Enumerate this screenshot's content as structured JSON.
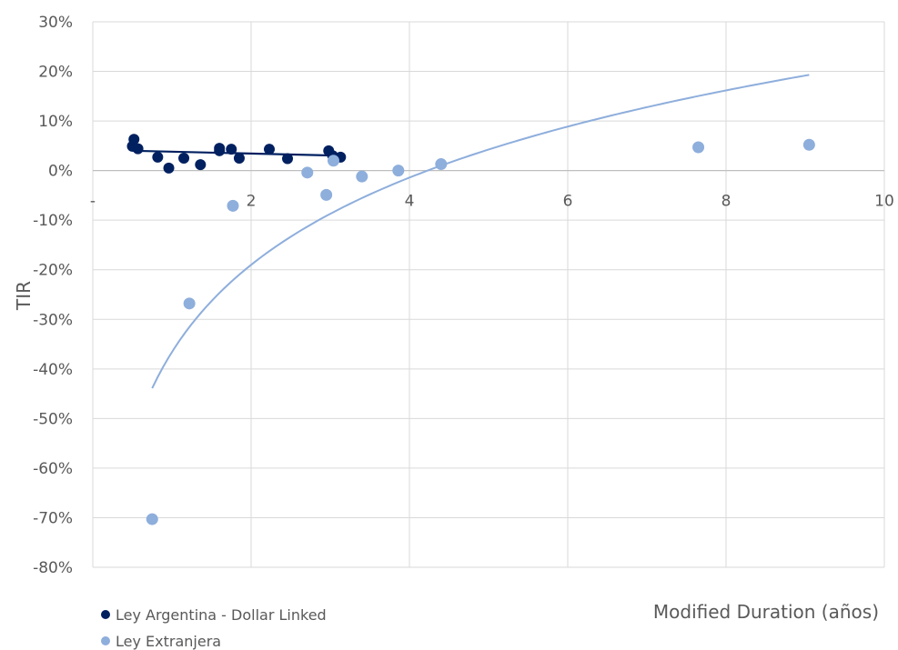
{
  "chart_data": {
    "type": "scatter",
    "xlabel": "Modified Duration (años)",
    "ylabel": "TIR",
    "xlim": [
      0,
      10
    ],
    "ylim": [
      -80,
      30
    ],
    "x_ticks": [
      {
        "value": 0,
        "label": "-"
      },
      {
        "value": 2,
        "label": "2"
      },
      {
        "value": 4,
        "label": "4"
      },
      {
        "value": 6,
        "label": "6"
      },
      {
        "value": 8,
        "label": "8"
      },
      {
        "value": 10,
        "label": "10"
      }
    ],
    "y_ticks": [
      {
        "value": 30,
        "label": "30%"
      },
      {
        "value": 20,
        "label": "20%"
      },
      {
        "value": 10,
        "label": "10%"
      },
      {
        "value": 0,
        "label": "0%"
      },
      {
        "value": -10,
        "label": "-10%"
      },
      {
        "value": -20,
        "label": "-20%"
      },
      {
        "value": -30,
        "label": "-30%"
      },
      {
        "value": -40,
        "label": "-40%"
      },
      {
        "value": -50,
        "label": "-50%"
      },
      {
        "value": -60,
        "label": "-60%"
      },
      {
        "value": -70,
        "label": "-70%"
      },
      {
        "value": -80,
        "label": "-80%"
      }
    ],
    "grid": true,
    "legend_position": "bottom-left",
    "series": [
      {
        "name": "Ley Argentina - Dollar Linked",
        "color": "#002060",
        "points": [
          {
            "x": 0.5,
            "y": 4.9
          },
          {
            "x": 0.52,
            "y": 6.3
          },
          {
            "x": 0.57,
            "y": 4.4
          },
          {
            "x": 0.82,
            "y": 2.7
          },
          {
            "x": 0.96,
            "y": 0.5
          },
          {
            "x": 1.15,
            "y": 2.5
          },
          {
            "x": 1.36,
            "y": 1.2
          },
          {
            "x": 1.6,
            "y": 4.5
          },
          {
            "x": 1.6,
            "y": 4.0
          },
          {
            "x": 1.75,
            "y": 4.3
          },
          {
            "x": 1.85,
            "y": 2.5
          },
          {
            "x": 2.23,
            "y": 4.3
          },
          {
            "x": 2.46,
            "y": 2.4
          },
          {
            "x": 2.98,
            "y": 4.0
          },
          {
            "x": 3.03,
            "y": 3.0
          },
          {
            "x": 3.13,
            "y": 2.7
          }
        ],
        "trend": {
          "type": "linear",
          "from": [
            0.5,
            4.0
          ],
          "to": [
            3.13,
            3.0
          ]
        }
      },
      {
        "name": "Ley Extranjera",
        "color": "#8eaedc",
        "points": [
          {
            "x": 0.75,
            "y": -70.3
          },
          {
            "x": 1.22,
            "y": -26.8
          },
          {
            "x": 1.77,
            "y": -7.1
          },
          {
            "x": 2.71,
            "y": -0.4
          },
          {
            "x": 2.95,
            "y": -4.9
          },
          {
            "x": 3.04,
            "y": 2.0
          },
          {
            "x": 3.4,
            "y": -1.2
          },
          {
            "x": 3.86,
            "y": 0.0
          },
          {
            "x": 4.4,
            "y": 1.3
          },
          {
            "x": 7.65,
            "y": 4.7
          },
          {
            "x": 9.05,
            "y": 5.2
          }
        ],
        "trend": {
          "type": "logarithmic",
          "x_range": [
            0.75,
            9.05
          ],
          "y_at_start": -43.9,
          "y_at_end": 19.3
        }
      }
    ]
  }
}
